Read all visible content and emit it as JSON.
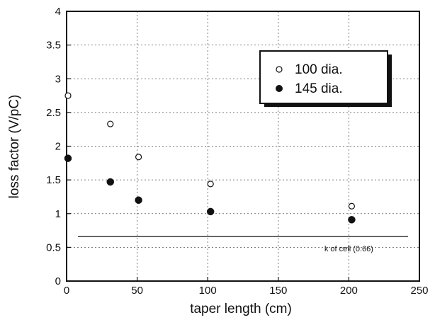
{
  "chart_data": {
    "type": "scatter",
    "xlabel": "taper length (cm)",
    "ylabel": "loss factor (V/pC)",
    "xlim": [
      0,
      250
    ],
    "ylim": [
      0,
      4
    ],
    "x_ticks": [
      "0",
      "50",
      "100",
      "150",
      "200",
      "250"
    ],
    "y_ticks": [
      "0",
      "0.5",
      "1",
      "1.5",
      "2",
      "2.5",
      "3",
      "3.5",
      "4"
    ],
    "grid": "dotted",
    "legend_position": "top-right",
    "series": [
      {
        "name": "100 dia.",
        "marker": "open-circle",
        "points": [
          {
            "x": 1,
            "y": 2.75
          },
          {
            "x": 31,
            "y": 2.33
          },
          {
            "x": 51,
            "y": 1.84
          },
          {
            "x": 102,
            "y": 1.44
          },
          {
            "x": 202,
            "y": 1.11
          }
        ]
      },
      {
        "name": "145 dia.",
        "marker": "filled-circle",
        "points": [
          {
            "x": 1,
            "y": 1.82
          },
          {
            "x": 31,
            "y": 1.47
          },
          {
            "x": 51,
            "y": 1.2
          },
          {
            "x": 102,
            "y": 1.03
          },
          {
            "x": 202,
            "y": 0.91
          }
        ]
      }
    ],
    "reference_line": {
      "y": 0.66,
      "x_start": 8,
      "x_end": 242,
      "label": "k of cell (0.66)"
    }
  }
}
